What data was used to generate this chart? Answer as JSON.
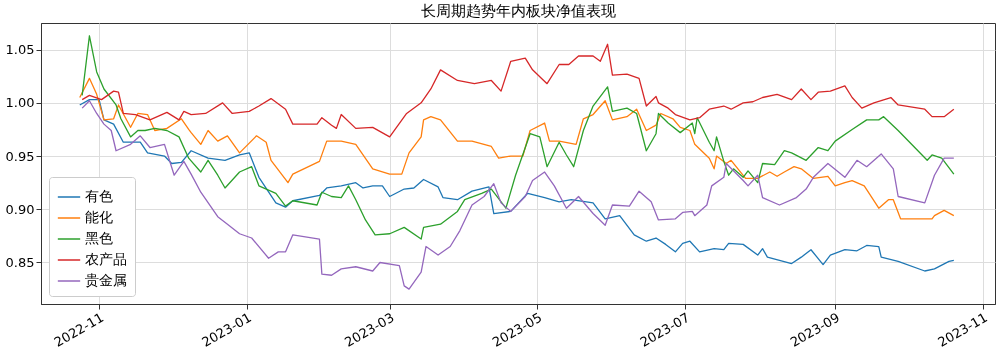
{
  "chart_data": {
    "type": "line",
    "title": "长周期趋势年内板块净值表现",
    "xlim": [
      "2022-10-08",
      "2023-11-06"
    ],
    "ylim": [
      0.811,
      1.075
    ],
    "xticks": [
      "2022-11",
      "2023-01",
      "2023-03",
      "2023-05",
      "2023-07",
      "2023-09",
      "2023-11"
    ],
    "yticks": [
      0.85,
      {
        "value": 0.9,
        "label": "0.90"
      },
      0.95,
      {
        "value": 1.0,
        "label": "1.00"
      },
      1.05
    ],
    "grid": true,
    "legend": "bottom left",
    "series": [
      {
        "name": "有色",
        "color": "#1f77b4",
        "x": [
          "2022-10-24",
          "2022-10-28",
          "2022-11-01",
          "2022-11-03",
          "2022-11-07",
          "2022-11-11",
          "2022-11-18",
          "2022-11-21",
          "2022-11-28",
          "2022-12-01",
          "2022-12-05",
          "2022-12-09",
          "2022-12-16",
          "2022-12-23",
          "2022-12-29",
          "2023-01-02",
          "2023-01-06",
          "2023-01-13",
          "2023-01-17",
          "2023-01-20",
          "2023-01-31",
          "2023-02-03",
          "2023-02-09",
          "2023-02-15",
          "2023-02-18",
          "2023-02-22",
          "2023-02-26",
          "2023-03-01",
          "2023-03-07",
          "2023-03-11",
          "2023-03-15",
          "2023-03-21",
          "2023-03-23",
          "2023-03-29",
          "2023-04-04",
          "2023-04-11",
          "2023-04-13",
          "2023-04-20",
          "2023-04-27",
          "2023-05-04",
          "2023-05-10",
          "2023-05-15",
          "2023-05-24",
          "2023-05-29",
          "2023-06-04",
          "2023-06-10",
          "2023-06-15",
          "2023-06-19",
          "2023-06-23",
          "2023-06-27",
          "2023-06-30",
          "2023-07-03",
          "2023-07-07",
          "2023-07-13",
          "2023-07-17",
          "2023-07-19",
          "2023-07-25",
          "2023-07-31",
          "2023-08-02",
          "2023-08-04",
          "2023-08-14",
          "2023-08-18",
          "2023-08-22",
          "2023-08-27",
          "2023-08-30",
          "2023-09-05",
          "2023-09-10",
          "2023-09-14",
          "2023-09-19",
          "2023-09-20",
          "2023-09-27",
          "2023-10-08",
          "2023-10-12",
          "2023-10-18",
          "2023-10-20"
        ],
        "values": [
          0.998,
          1.003,
          1.003,
          0.984,
          0.98,
          0.963,
          0.963,
          0.953,
          0.95,
          0.943,
          0.944,
          0.955,
          0.948,
          0.946,
          0.951,
          0.953,
          0.93,
          0.906,
          0.902,
          0.908,
          0.913,
          0.92,
          0.922,
          0.925,
          0.92,
          0.922,
          0.922,
          0.912,
          0.919,
          0.92,
          0.928,
          0.921,
          0.911,
          0.909,
          0.917,
          0.921,
          0.896,
          0.898,
          0.915,
          0.911,
          0.907,
          0.909,
          0.906,
          0.891,
          0.894,
          0.876,
          0.87,
          0.873,
          0.867,
          0.86,
          0.868,
          0.87,
          0.86,
          0.863,
          0.862,
          0.868,
          0.867,
          0.857,
          0.863,
          0.855,
          0.849,
          0.855,
          0.862,
          0.848,
          0.857,
          0.862,
          0.861,
          0.866,
          0.865,
          0.855,
          0.851,
          0.842,
          0.844,
          0.851,
          0.852
        ]
      },
      {
        "name": "能化",
        "color": "#ff7f0e",
        "x": [
          "2022-10-24",
          "2022-10-28",
          "2022-10-31",
          "2022-11-03",
          "2022-11-07",
          "2022-11-09",
          "2022-11-14",
          "2022-11-17",
          "2022-11-21",
          "2022-11-24",
          "2022-11-29",
          "2022-12-05",
          "2022-12-08",
          "2022-12-09",
          "2022-12-13",
          "2022-12-16",
          "2022-12-20",
          "2022-12-24",
          "2022-12-29",
          "2023-01-05",
          "2023-01-09",
          "2023-01-11",
          "2023-01-18",
          "2023-01-20",
          "2023-01-31",
          "2023-02-03",
          "2023-02-09",
          "2023-02-15",
          "2023-02-22",
          "2023-03-01",
          "2023-03-06",
          "2023-03-09",
          "2023-03-14",
          "2023-03-15",
          "2023-03-18",
          "2023-03-22",
          "2023-03-29",
          "2023-04-04",
          "2023-04-12",
          "2023-04-15",
          "2023-04-20",
          "2023-04-25",
          "2023-04-28",
          "2023-05-04",
          "2023-05-06",
          "2023-05-10",
          "2023-05-17",
          "2023-05-20",
          "2023-05-24",
          "2023-05-29",
          "2023-06-01",
          "2023-06-07",
          "2023-06-11",
          "2023-06-15",
          "2023-06-19",
          "2023-06-21",
          "2023-06-26",
          "2023-06-29",
          "2023-07-03",
          "2023-07-05",
          "2023-07-11",
          "2023-07-13",
          "2023-07-14",
          "2023-07-18",
          "2023-07-20",
          "2023-07-26",
          "2023-07-31",
          "2023-08-05",
          "2023-08-08",
          "2023-08-11",
          "2023-08-15",
          "2023-08-18",
          "2023-08-23",
          "2023-08-29",
          "2023-09-01",
          "2023-09-05",
          "2023-09-08",
          "2023-09-13",
          "2023-09-19",
          "2023-09-23",
          "2023-09-25",
          "2023-09-28",
          "2023-10-11",
          "2023-10-12",
          "2023-10-16",
          "2023-10-20"
        ],
        "values": [
          1.005,
          1.023,
          1.008,
          0.984,
          0.985,
          0.998,
          0.977,
          0.99,
          0.989,
          0.974,
          0.976,
          0.985,
          0.975,
          0.972,
          0.961,
          0.974,
          0.964,
          0.969,
          0.953,
          0.969,
          0.963,
          0.946,
          0.925,
          0.933,
          0.945,
          0.964,
          0.964,
          0.961,
          0.938,
          0.933,
          0.933,
          0.953,
          0.968,
          0.984,
          0.987,
          0.984,
          0.964,
          0.964,
          0.959,
          0.948,
          0.95,
          0.95,
          0.974,
          0.981,
          0.964,
          0.964,
          0.961,
          0.985,
          0.989,
          1.002,
          0.984,
          0.987,
          0.994,
          0.974,
          0.979,
          0.99,
          0.985,
          0.977,
          0.974,
          0.961,
          0.948,
          0.938,
          0.95,
          0.943,
          0.946,
          0.929,
          0.929,
          0.935,
          0.931,
          0.935,
          0.94,
          0.938,
          0.929,
          0.931,
          0.922,
          0.925,
          0.927,
          0.922,
          0.901,
          0.909,
          0.909,
          0.891,
          0.891,
          0.894,
          0.899,
          0.894
        ]
      },
      {
        "name": "黑色",
        "color": "#2ca02c",
        "x": [
          "2022-10-25",
          "2022-10-28",
          "2022-10-31",
          "2022-11-03",
          "2022-11-08",
          "2022-11-10",
          "2022-11-14",
          "2022-11-17",
          "2022-11-20",
          "2022-11-24",
          "2022-11-29",
          "2022-12-04",
          "2022-12-08",
          "2022-12-13",
          "2022-12-16",
          "2022-12-20",
          "2022-12-23",
          "2022-12-29",
          "2023-01-03",
          "2023-01-06",
          "2023-01-13",
          "2023-01-17",
          "2023-01-20",
          "2023-01-30",
          "2023-02-01",
          "2023-02-05",
          "2023-02-09",
          "2023-02-12",
          "2023-02-15",
          "2023-02-19",
          "2023-02-23",
          "2023-03-01",
          "2023-03-07",
          "2023-03-14",
          "2023-03-15",
          "2023-03-22",
          "2023-03-29",
          "2023-04-01",
          "2023-04-08",
          "2023-04-12",
          "2023-04-18",
          "2023-04-22",
          "2023-04-28",
          "2023-05-02",
          "2023-05-05",
          "2023-05-10",
          "2023-05-13",
          "2023-05-16",
          "2023-05-20",
          "2023-05-24",
          "2023-05-30",
          "2023-06-01",
          "2023-06-07",
          "2023-06-11",
          "2023-06-15",
          "2023-06-19",
          "2023-06-20",
          "2023-06-24",
          "2023-06-29",
          "2023-07-04",
          "2023-07-05",
          "2023-07-06",
          "2023-07-11",
          "2023-07-13",
          "2023-07-14",
          "2023-07-17",
          "2023-07-19",
          "2023-07-21",
          "2023-07-25",
          "2023-07-27",
          "2023-07-31",
          "2023-08-02",
          "2023-08-07",
          "2023-08-11",
          "2023-08-14",
          "2023-08-20",
          "2023-08-25",
          "2023-08-29",
          "2023-09-01",
          "2023-09-08",
          "2023-09-14",
          "2023-09-19",
          "2023-09-21",
          "2023-09-27",
          "2023-10-09",
          "2023-10-11",
          "2023-10-15",
          "2023-10-20"
        ],
        "values": [
          1.007,
          1.063,
          1.029,
          1.013,
          0.998,
          0.985,
          0.968,
          0.974,
          0.974,
          0.976,
          0.974,
          0.968,
          0.948,
          0.935,
          0.946,
          0.932,
          0.92,
          0.935,
          0.94,
          0.922,
          0.915,
          0.903,
          0.908,
          0.904,
          0.916,
          0.912,
          0.911,
          0.922,
          0.909,
          0.89,
          0.876,
          0.877,
          0.883,
          0.872,
          0.883,
          0.886,
          0.898,
          0.909,
          0.915,
          0.919,
          0.901,
          0.932,
          0.971,
          0.968,
          0.94,
          0.963,
          0.951,
          0.94,
          0.974,
          0.997,
          1.015,
          0.992,
          0.995,
          0.99,
          0.955,
          0.971,
          0.99,
          0.981,
          0.972,
          0.981,
          0.971,
          0.986,
          0.963,
          0.955,
          0.968,
          0.945,
          0.932,
          0.938,
          0.93,
          0.936,
          0.925,
          0.943,
          0.942,
          0.955,
          0.953,
          0.946,
          0.958,
          0.955,
          0.964,
          0.975,
          0.984,
          0.984,
          0.987,
          0.974,
          0.946,
          0.951,
          0.948,
          0.933
        ]
      },
      {
        "name": "农产品",
        "color": "#d62728",
        "x": [
          "2022-10-25",
          "2022-10-28",
          "2022-11-02",
          "2022-11-07",
          "2022-11-09",
          "2022-11-11",
          "2022-11-16",
          "2022-11-22",
          "2022-11-29",
          "2022-12-04",
          "2022-12-06",
          "2022-12-09",
          "2022-12-15",
          "2022-12-22",
          "2022-12-26",
          "2023-01-02",
          "2023-01-06",
          "2023-01-11",
          "2023-01-17",
          "2023-01-20",
          "2023-01-30",
          "2023-02-01",
          "2023-02-05",
          "2023-02-07",
          "2023-02-09",
          "2023-02-15",
          "2023-02-22",
          "2023-03-01",
          "2023-03-08",
          "2023-03-14",
          "2023-03-18",
          "2023-03-22",
          "2023-03-29",
          "2023-04-05",
          "2023-04-12",
          "2023-04-16",
          "2023-04-20",
          "2023-04-26",
          "2023-04-29",
          "2023-05-05",
          "2023-05-10",
          "2023-05-14",
          "2023-05-18",
          "2023-05-24",
          "2023-05-27",
          "2023-05-30",
          "2023-06-01",
          "2023-06-07",
          "2023-06-12",
          "2023-06-15",
          "2023-06-19",
          "2023-06-20",
          "2023-06-24",
          "2023-06-27",
          "2023-07-03",
          "2023-07-07",
          "2023-07-11",
          "2023-07-17",
          "2023-07-20",
          "2023-07-25",
          "2023-07-29",
          "2023-08-02",
          "2023-08-08",
          "2023-08-14",
          "2023-08-18",
          "2023-08-22",
          "2023-08-25",
          "2023-08-30",
          "2023-09-05",
          "2023-09-08",
          "2023-09-12",
          "2023-09-17",
          "2023-09-24",
          "2023-09-27",
          "2023-10-08",
          "2023-10-11",
          "2023-10-16",
          "2023-10-20"
        ],
        "values": [
          1.003,
          1.007,
          1.003,
          1.011,
          1.01,
          0.99,
          0.989,
          0.984,
          0.991,
          0.984,
          0.992,
          0.989,
          0.99,
          1.0,
          0.99,
          0.992,
          0.997,
          1.004,
          0.994,
          0.98,
          0.98,
          0.986,
          0.979,
          0.976,
          0.989,
          0.976,
          0.977,
          0.968,
          0.99,
          1.0,
          1.013,
          1.031,
          1.021,
          1.018,
          1.021,
          1.011,
          1.039,
          1.042,
          1.031,
          1.018,
          1.036,
          1.036,
          1.044,
          1.044,
          1.039,
          1.055,
          1.026,
          1.027,
          1.023,
          0.997,
          1.006,
          1.0,
          0.995,
          0.989,
          0.984,
          0.986,
          0.994,
          0.997,
          0.994,
          1.0,
          1.001,
          1.005,
          1.008,
          1.003,
          1.013,
          1.003,
          1.01,
          1.011,
          1.016,
          1.005,
          0.995,
          1.0,
          1.005,
          0.998,
          0.994,
          0.987,
          0.987,
          0.994
        ]
      },
      {
        "name": "贵金属",
        "color": "#9467bd",
        "x": [
          "2022-10-25",
          "2022-10-28",
          "2022-10-31",
          "2022-11-03",
          "2022-11-06",
          "2022-11-08",
          "2022-11-14",
          "2022-11-18",
          "2022-11-22",
          "2022-11-28",
          "2022-12-02",
          "2022-12-06",
          "2022-12-09",
          "2022-12-13",
          "2022-12-20",
          "2022-12-24",
          "2022-12-29",
          "2023-01-03",
          "2023-01-10",
          "2023-01-14",
          "2023-01-17",
          "2023-01-20",
          "2023-01-31",
          "2023-02-01",
          "2023-02-05",
          "2023-02-09",
          "2023-02-15",
          "2023-02-22",
          "2023-02-25",
          "2023-03-05",
          "2023-03-07",
          "2023-03-09",
          "2023-03-14",
          "2023-03-16",
          "2023-03-21",
          "2023-03-26",
          "2023-03-30",
          "2023-04-04",
          "2023-04-09",
          "2023-04-13",
          "2023-04-16",
          "2023-04-20",
          "2023-04-26",
          "2023-04-29",
          "2023-05-04",
          "2023-05-08",
          "2023-05-13",
          "2023-05-18",
          "2023-05-24",
          "2023-05-29",
          "2023-06-01",
          "2023-06-08",
          "2023-06-12",
          "2023-06-17",
          "2023-06-20",
          "2023-06-27",
          "2023-06-30",
          "2023-07-04",
          "2023-07-05",
          "2023-07-10",
          "2023-07-12",
          "2023-07-17",
          "2023-07-18",
          "2023-07-25",
          "2023-07-27",
          "2023-07-31",
          "2023-08-02",
          "2023-08-09",
          "2023-08-16",
          "2023-08-20",
          "2023-08-23",
          "2023-08-29",
          "2023-09-05",
          "2023-09-10",
          "2023-09-14",
          "2023-09-20",
          "2023-09-25",
          "2023-09-27",
          "2023-10-08",
          "2023-10-12",
          "2023-10-16",
          "2023-10-20"
        ],
        "values": [
          0.995,
          1.002,
          0.99,
          0.98,
          0.974,
          0.955,
          0.961,
          0.969,
          0.958,
          0.961,
          0.932,
          0.945,
          0.933,
          0.916,
          0.893,
          0.886,
          0.877,
          0.873,
          0.854,
          0.86,
          0.86,
          0.876,
          0.872,
          0.839,
          0.838,
          0.844,
          0.846,
          0.842,
          0.85,
          0.847,
          0.828,
          0.825,
          0.841,
          0.865,
          0.857,
          0.865,
          0.88,
          0.904,
          0.912,
          0.924,
          0.906,
          0.898,
          0.912,
          0.927,
          0.935,
          0.922,
          0.901,
          0.912,
          0.896,
          0.885,
          0.904,
          0.903,
          0.917,
          0.907,
          0.89,
          0.891,
          0.897,
          0.898,
          0.894,
          0.904,
          0.922,
          0.93,
          0.943,
          0.927,
          0.922,
          0.932,
          0.911,
          0.904,
          0.911,
          0.919,
          0.93,
          0.943,
          0.93,
          0.946,
          0.94,
          0.952,
          0.938,
          0.912,
          0.906,
          0.932,
          0.948,
          0.948
        ]
      }
    ]
  }
}
